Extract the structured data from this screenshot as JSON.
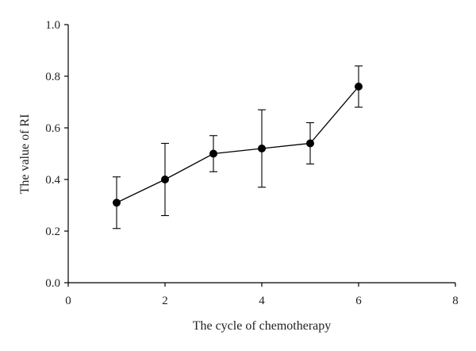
{
  "chart_data": {
    "type": "line",
    "title": "",
    "xlabel": "The cycle of chemotherapy",
    "ylabel": "The value of RI",
    "xlim": [
      0,
      8
    ],
    "ylim": [
      0,
      1.0
    ],
    "x_ticks": [
      0,
      2,
      4,
      6,
      8
    ],
    "x_tick_labels": [
      "0",
      "2",
      "4",
      "6",
      "8"
    ],
    "y_ticks": [
      0,
      0.2,
      0.4,
      0.6,
      0.8,
      1.0
    ],
    "y_tick_labels": [
      "0.0",
      "0.2",
      "0.4",
      "0.6",
      "0.8",
      "1.0"
    ],
    "grid": false,
    "legend": "none",
    "series": [
      {
        "x": [
          1,
          2,
          3,
          4,
          5,
          6
        ],
        "y": [
          0.31,
          0.4,
          0.5,
          0.52,
          0.54,
          0.76
        ],
        "error_upper": [
          0.41,
          0.54,
          0.57,
          0.67,
          0.62,
          0.84
        ],
        "error_lower": [
          0.21,
          0.26,
          0.43,
          0.37,
          0.46,
          0.68
        ],
        "color": "#000000",
        "marker": "filled-circle"
      }
    ]
  }
}
